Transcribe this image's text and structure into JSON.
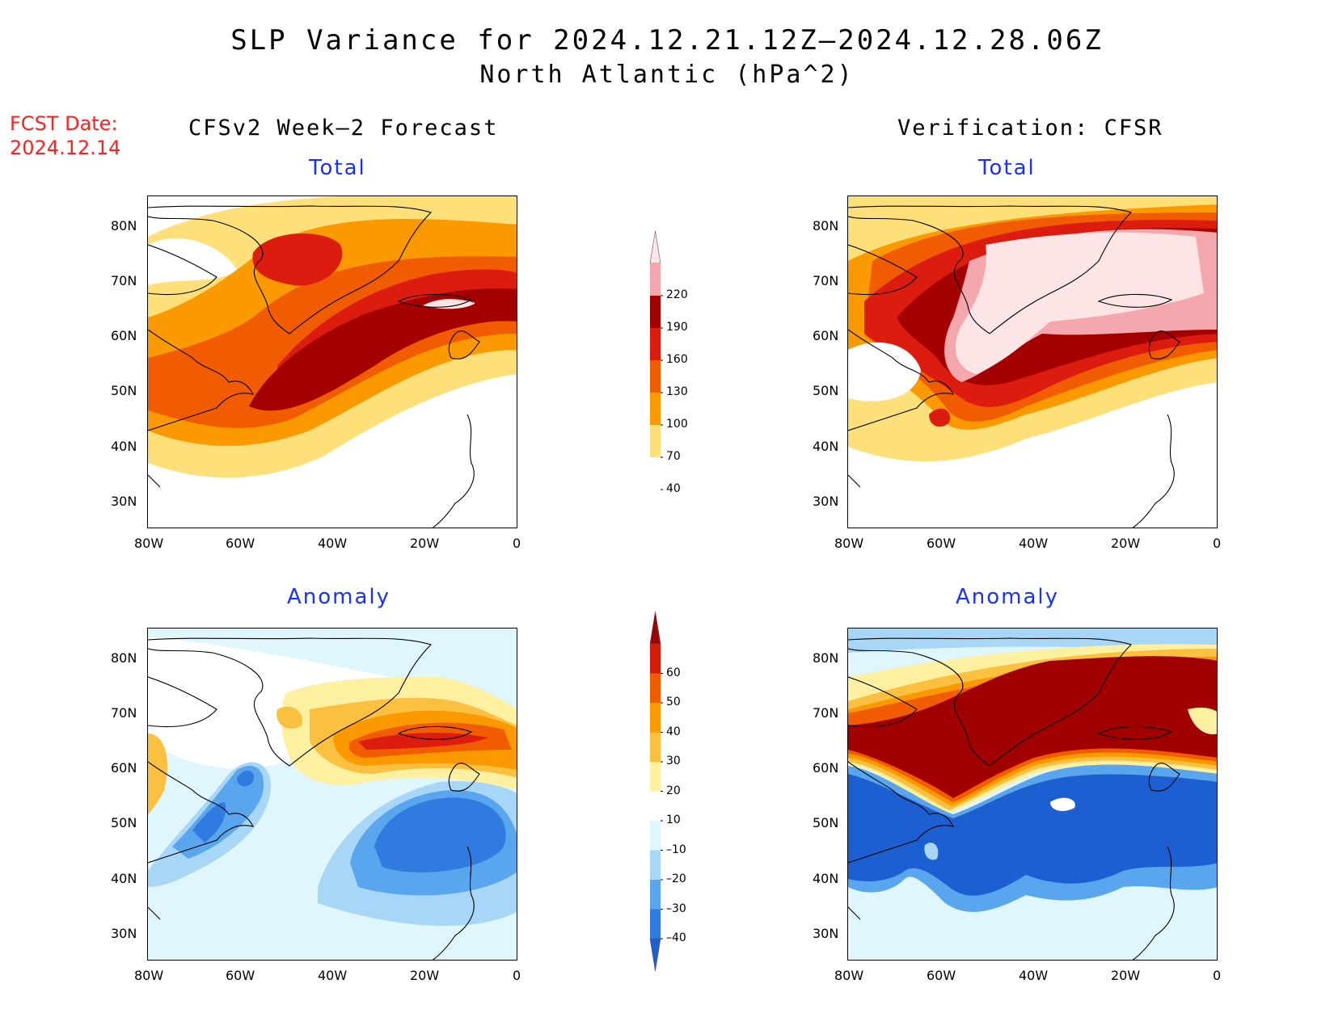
{
  "title": "SLP Variance for 2024.12.21.12Z–2024.12.28.06Z",
  "subtitle": "North Atlantic (hPa^2)",
  "fcst_date_label": "FCST Date:",
  "fcst_date_value": "2024.12.14",
  "columns": {
    "left": "CFSv2 Week–2 Forecast",
    "right": "Verification: CFSR"
  },
  "panels": {
    "tl": "Total",
    "tr": "Total",
    "bl": "Anomaly",
    "br": "Anomaly"
  },
  "axes": {
    "lat_labels": [
      "80N",
      "70N",
      "60N",
      "50N",
      "40N",
      "30N"
    ],
    "lon_labels": [
      "80W",
      "60W",
      "40W",
      "20W",
      "0"
    ]
  },
  "colorbars": {
    "total": {
      "levels": [
        "220",
        "190",
        "160",
        "130",
        "100",
        "70",
        "40"
      ],
      "colors": [
        "#f4a7ad",
        "#a50000",
        "#dc1c0e",
        "#f25c00",
        "#fa9a00",
        "#fde07a"
      ],
      "over_color": "#fde5e5"
    },
    "anomaly": {
      "levels": [
        "60",
        "50",
        "40",
        "30",
        "20",
        "10",
        "–10",
        "–20",
        "–30",
        "–40"
      ],
      "colors": [
        "#d01c08",
        "#f25c00",
        "#fa9a00",
        "#fbc040",
        "#fdf0a0",
        "#ffffff",
        "#dff6fd",
        "#a7d6f7",
        "#5aa6ee",
        "#2f7be0"
      ],
      "over_color": "#a00000",
      "under_color": "#1d5fd0"
    }
  }
}
